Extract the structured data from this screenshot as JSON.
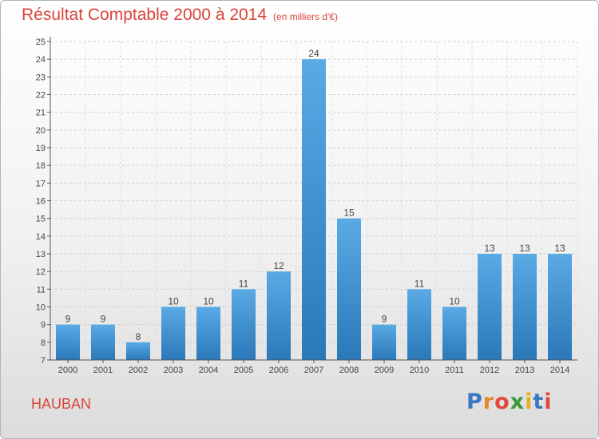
{
  "chart_data": {
    "type": "bar",
    "title": "Résultat Comptable 2000 à 2014",
    "subtitle": "(en milliers d'€)",
    "categories": [
      "2000",
      "2001",
      "2002",
      "2003",
      "2004",
      "2005",
      "2006",
      "2007",
      "2008",
      "2009",
      "2010",
      "2011",
      "2012",
      "2013",
      "2014"
    ],
    "values": [
      9,
      9,
      8,
      10,
      10,
      11,
      12,
      24,
      15,
      9,
      11,
      10,
      13,
      13,
      13
    ],
    "ylim": [
      7,
      25
    ],
    "yticks": [
      7,
      8,
      9,
      10,
      11,
      12,
      13,
      14,
      15,
      16,
      17,
      18,
      19,
      20,
      21,
      22,
      23,
      24,
      25
    ],
    "grid": true,
    "bar_color": "#3d8fd4"
  },
  "footer": {
    "name": "HAUBAN",
    "logo_letters": [
      {
        "ch": "P",
        "color": "#3a78c2"
      },
      {
        "ch": "r",
        "color": "#e8862a"
      },
      {
        "ch": "o",
        "color": "#e04a3c"
      },
      {
        "ch": "x",
        "color": "#3a9a3a"
      },
      {
        "ch": "i",
        "color": "#e8b020"
      },
      {
        "ch": "t",
        "color": "#3a78c2"
      },
      {
        "ch": "i",
        "color": "#e04a3c"
      }
    ]
  }
}
